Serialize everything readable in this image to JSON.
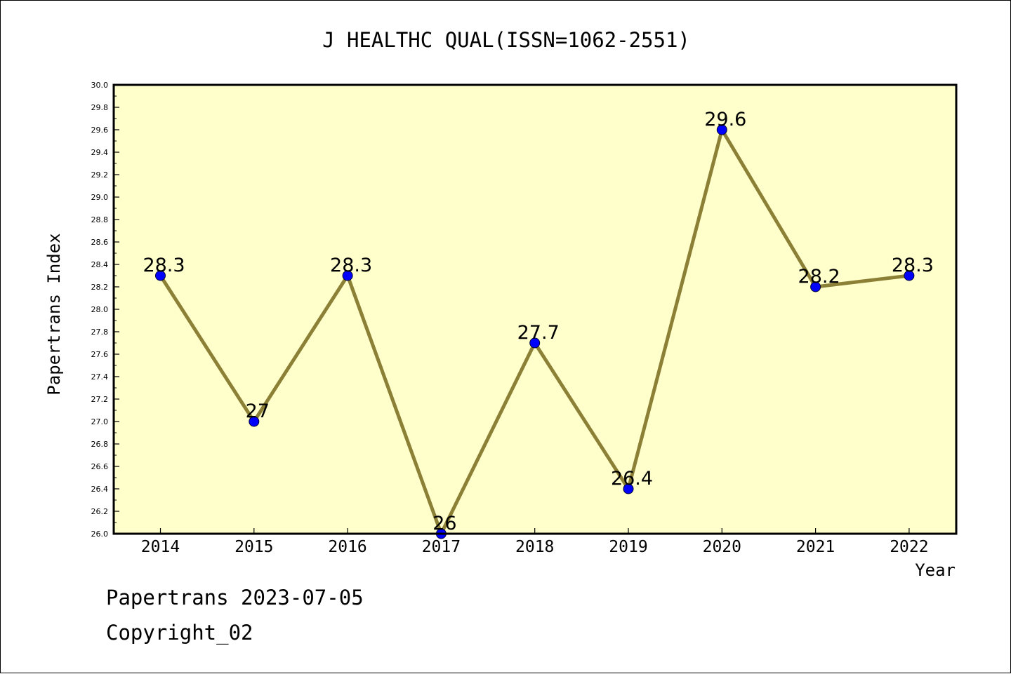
{
  "chart_data": {
    "type": "line",
    "title": "J HEALTHC QUAL(ISSN=1062-2551)",
    "xlabel": "Year",
    "ylabel": "Papertrans Index",
    "categories": [
      "2014",
      "2015",
      "2016",
      "2017",
      "2018",
      "2019",
      "2020",
      "2021",
      "2022"
    ],
    "values": [
      28.3,
      27,
      28.3,
      26,
      27.7,
      26.4,
      29.6,
      28.2,
      28.3
    ],
    "data_labels": [
      "28.3",
      "27",
      "28.3",
      "26",
      "27.7",
      "26.4",
      "29.6",
      "28.2",
      "28.3"
    ],
    "ylim": [
      26.0,
      30.0
    ],
    "y_ticks": [
      "26.0",
      "26.2",
      "26.4",
      "26.6",
      "26.8",
      "27.0",
      "27.2",
      "27.4",
      "27.6",
      "27.8",
      "28.0",
      "28.2",
      "28.4",
      "28.6",
      "28.8",
      "29.0",
      "29.2",
      "29.4",
      "29.6",
      "29.8",
      "30.0"
    ],
    "grid": false,
    "legend": "none",
    "colors": {
      "plot_background": "#ffffcc",
      "line": "#8b8035",
      "marker": "#0000ff",
      "frame": "#000000"
    }
  },
  "footer": {
    "line1": "Papertrans 2023-07-05",
    "line2": "Copyright_02"
  }
}
